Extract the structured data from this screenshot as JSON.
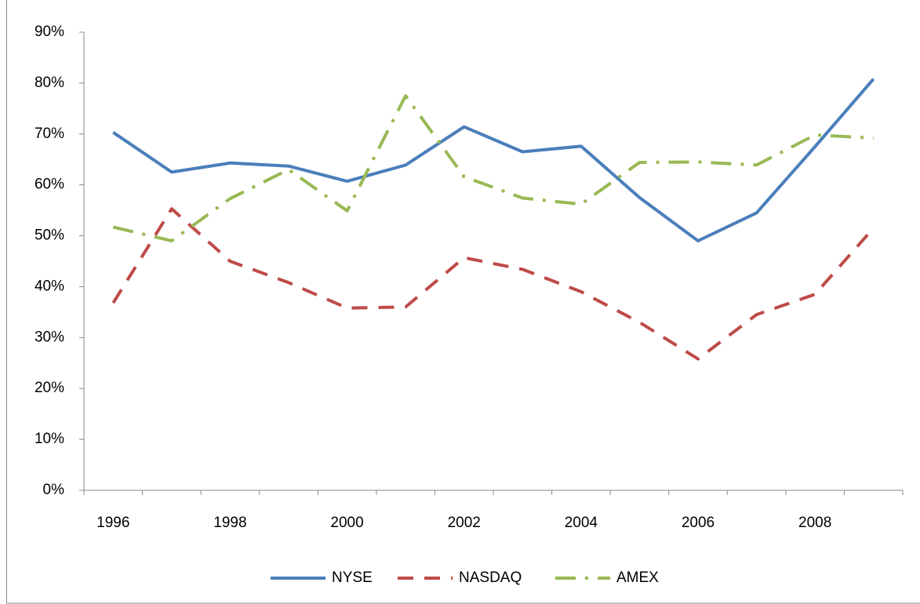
{
  "chart_data": {
    "type": "line",
    "categories": [
      "1996",
      null,
      "1998",
      null,
      "2000",
      null,
      "2002",
      null,
      "2004",
      null,
      "2006",
      null,
      "2008",
      null
    ],
    "series": [
      {
        "name": "NYSE",
        "color": "#4a7ebb",
        "dash": "solid",
        "values": [
          70.3,
          62.5,
          64.3,
          63.7,
          60.7,
          63.9,
          71.4,
          66.5,
          67.6,
          57.5,
          49.0,
          54.5,
          67.5,
          80.8
        ]
      },
      {
        "name": "NASDAQ",
        "color": "#be4b48",
        "dash": "dashed",
        "values": [
          36.8,
          55.3,
          45.0,
          40.8,
          35.8,
          36.0,
          45.7,
          43.4,
          39.0,
          33.0,
          25.8,
          34.5,
          38.5,
          51.5
        ]
      },
      {
        "name": "AMEX",
        "color": "#98b954",
        "dash": "dashdot",
        "values": [
          51.7,
          49.0,
          57.3,
          63.0,
          54.9,
          77.5,
          61.6,
          57.4,
          56.2,
          64.4,
          64.5,
          63.9,
          69.8,
          69.2
        ]
      }
    ],
    "ylim": [
      0,
      90
    ],
    "yticks": [
      {
        "value": 0,
        "label": "0%"
      },
      {
        "value": 10,
        "label": "10%"
      },
      {
        "value": 20,
        "label": "20%"
      },
      {
        "value": 30,
        "label": "30%"
      },
      {
        "value": 40,
        "label": "40%"
      },
      {
        "value": 50,
        "label": "50%"
      },
      {
        "value": 60,
        "label": "60%"
      },
      {
        "value": 70,
        "label": "70%"
      },
      {
        "value": 80,
        "label": "80%"
      },
      {
        "value": 90,
        "label": "90%"
      }
    ],
    "grid": false,
    "legend": "bottom"
  }
}
